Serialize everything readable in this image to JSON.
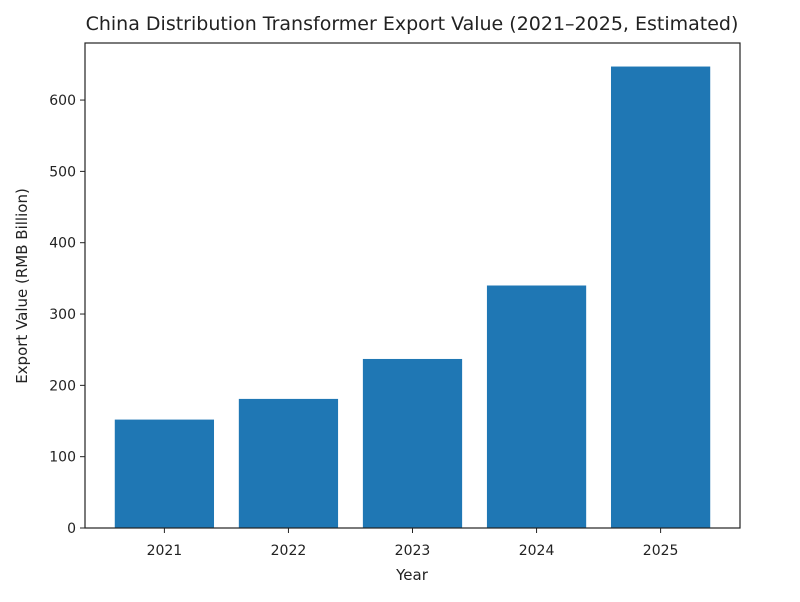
{
  "chart_data": {
    "type": "bar",
    "title": "China Distribution Transformer Export Value (2021–2025, Estimated)",
    "xlabel": "Year",
    "ylabel": "Export Value (RMB Billion)",
    "categories": [
      "2021",
      "2022",
      "2023",
      "2024",
      "2025"
    ],
    "values": [
      152,
      181,
      237,
      340,
      647
    ],
    "ylim": [
      0,
      680
    ],
    "yticks": [
      0,
      100,
      200,
      300,
      400,
      500,
      600
    ],
    "grid": false,
    "bar_color": "#1f77b4"
  }
}
